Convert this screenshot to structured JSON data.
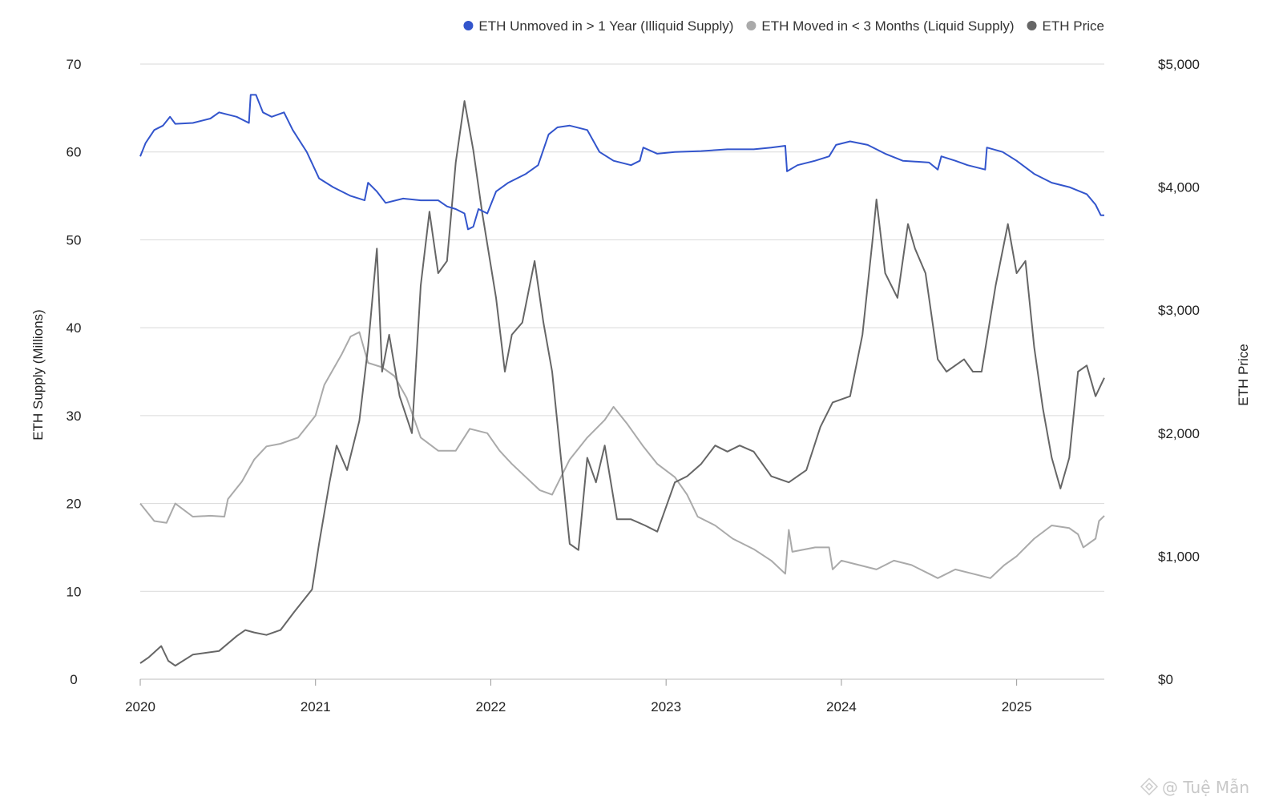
{
  "chart_data": {
    "type": "line",
    "title": "",
    "xlabel": "",
    "ylabel": "ETH Supply (Millions)",
    "y2label": "ETH Price",
    "x_ticks": [
      "2020",
      "2021",
      "2022",
      "2023",
      "2024",
      "2025"
    ],
    "y_ticks": [
      "0",
      "10",
      "20",
      "30",
      "40",
      "50",
      "60",
      "70"
    ],
    "y2_ticks": [
      "$0",
      "$1,000",
      "$2,000",
      "$3,000",
      "$4,000",
      "$5,000"
    ],
    "xlim": [
      2020.0,
      2025.5
    ],
    "ylim": [
      0,
      70
    ],
    "y2lim": [
      0,
      5000
    ],
    "grid": "horizontal",
    "legend_position": "top-right",
    "series": [
      {
        "name": "ETH Unmoved in > 1 Year (Illiquid Supply)",
        "axis": "left",
        "color": "#3355cc",
        "points": [
          [
            2020.0,
            59.5
          ],
          [
            2020.03,
            61.0
          ],
          [
            2020.08,
            62.5
          ],
          [
            2020.13,
            63.0
          ],
          [
            2020.17,
            64.0
          ],
          [
            2020.2,
            63.2
          ],
          [
            2020.3,
            63.3
          ],
          [
            2020.4,
            63.8
          ],
          [
            2020.45,
            64.5
          ],
          [
            2020.55,
            64.0
          ],
          [
            2020.62,
            63.3
          ],
          [
            2020.63,
            66.5
          ],
          [
            2020.66,
            66.5
          ],
          [
            2020.7,
            64.5
          ],
          [
            2020.75,
            64.0
          ],
          [
            2020.82,
            64.5
          ],
          [
            2020.87,
            62.5
          ],
          [
            2020.95,
            60.0
          ],
          [
            2021.02,
            57.0
          ],
          [
            2021.1,
            56.0
          ],
          [
            2021.2,
            55.0
          ],
          [
            2021.28,
            54.5
          ],
          [
            2021.3,
            56.5
          ],
          [
            2021.35,
            55.5
          ],
          [
            2021.4,
            54.2
          ],
          [
            2021.5,
            54.7
          ],
          [
            2021.6,
            54.5
          ],
          [
            2021.7,
            54.5
          ],
          [
            2021.75,
            53.8
          ],
          [
            2021.8,
            53.5
          ],
          [
            2021.85,
            53.0
          ],
          [
            2021.87,
            51.2
          ],
          [
            2021.9,
            51.5
          ],
          [
            2021.93,
            53.5
          ],
          [
            2021.98,
            53.0
          ],
          [
            2022.03,
            55.5
          ],
          [
            2022.1,
            56.5
          ],
          [
            2022.2,
            57.5
          ],
          [
            2022.27,
            58.5
          ],
          [
            2022.33,
            62.0
          ],
          [
            2022.38,
            62.8
          ],
          [
            2022.45,
            63.0
          ],
          [
            2022.55,
            62.5
          ],
          [
            2022.62,
            60.0
          ],
          [
            2022.7,
            59.0
          ],
          [
            2022.8,
            58.5
          ],
          [
            2022.85,
            59.0
          ],
          [
            2022.87,
            60.5
          ],
          [
            2022.95,
            59.8
          ],
          [
            2023.05,
            60.0
          ],
          [
            2023.2,
            60.1
          ],
          [
            2023.35,
            60.3
          ],
          [
            2023.5,
            60.3
          ],
          [
            2023.6,
            60.5
          ],
          [
            2023.68,
            60.7
          ],
          [
            2023.69,
            57.8
          ],
          [
            2023.75,
            58.5
          ],
          [
            2023.85,
            59.0
          ],
          [
            2023.93,
            59.5
          ],
          [
            2023.97,
            60.8
          ],
          [
            2024.05,
            61.2
          ],
          [
            2024.15,
            60.8
          ],
          [
            2024.25,
            59.8
          ],
          [
            2024.35,
            59.0
          ],
          [
            2024.5,
            58.8
          ],
          [
            2024.55,
            58.0
          ],
          [
            2024.57,
            59.5
          ],
          [
            2024.65,
            59.0
          ],
          [
            2024.72,
            58.5
          ],
          [
            2024.82,
            58.0
          ],
          [
            2024.83,
            60.5
          ],
          [
            2024.92,
            60.0
          ],
          [
            2025.0,
            59.0
          ],
          [
            2025.1,
            57.5
          ],
          [
            2025.2,
            56.5
          ],
          [
            2025.3,
            56.0
          ],
          [
            2025.4,
            55.2
          ],
          [
            2025.45,
            54.0
          ],
          [
            2025.48,
            52.8
          ],
          [
            2025.5,
            52.8
          ]
        ]
      },
      {
        "name": "ETH Moved in < 3 Months (Liquid Supply)",
        "axis": "left",
        "color": "#aaaaaa",
        "points": [
          [
            2020.0,
            20.0
          ],
          [
            2020.08,
            18.0
          ],
          [
            2020.15,
            17.8
          ],
          [
            2020.2,
            20.0
          ],
          [
            2020.3,
            18.5
          ],
          [
            2020.4,
            18.6
          ],
          [
            2020.48,
            18.5
          ],
          [
            2020.5,
            20.5
          ],
          [
            2020.58,
            22.5
          ],
          [
            2020.65,
            25.0
          ],
          [
            2020.72,
            26.5
          ],
          [
            2020.8,
            26.8
          ],
          [
            2020.9,
            27.5
          ],
          [
            2021.0,
            30.0
          ],
          [
            2021.05,
            33.5
          ],
          [
            2021.15,
            37.0
          ],
          [
            2021.2,
            39.0
          ],
          [
            2021.25,
            39.5
          ],
          [
            2021.3,
            36.0
          ],
          [
            2021.38,
            35.5
          ],
          [
            2021.45,
            34.5
          ],
          [
            2021.52,
            32.0
          ],
          [
            2021.6,
            27.5
          ],
          [
            2021.7,
            26.0
          ],
          [
            2021.8,
            26.0
          ],
          [
            2021.88,
            28.5
          ],
          [
            2021.98,
            28.0
          ],
          [
            2022.05,
            26.0
          ],
          [
            2022.12,
            24.5
          ],
          [
            2022.2,
            23.0
          ],
          [
            2022.28,
            21.5
          ],
          [
            2022.35,
            21.0
          ],
          [
            2022.45,
            25.0
          ],
          [
            2022.55,
            27.5
          ],
          [
            2022.65,
            29.5
          ],
          [
            2022.7,
            31.0
          ],
          [
            2022.78,
            29.0
          ],
          [
            2022.87,
            26.5
          ],
          [
            2022.95,
            24.5
          ],
          [
            2023.05,
            23.0
          ],
          [
            2023.12,
            21.0
          ],
          [
            2023.18,
            18.5
          ],
          [
            2023.28,
            17.5
          ],
          [
            2023.38,
            16.0
          ],
          [
            2023.5,
            14.8
          ],
          [
            2023.6,
            13.5
          ],
          [
            2023.68,
            12.0
          ],
          [
            2023.7,
            17.0
          ],
          [
            2023.72,
            14.5
          ],
          [
            2023.85,
            15.0
          ],
          [
            2023.93,
            15.0
          ],
          [
            2023.95,
            12.5
          ],
          [
            2024.0,
            13.5
          ],
          [
            2024.1,
            13.0
          ],
          [
            2024.2,
            12.5
          ],
          [
            2024.3,
            13.5
          ],
          [
            2024.4,
            13.0
          ],
          [
            2024.5,
            12.0
          ],
          [
            2024.55,
            11.5
          ],
          [
            2024.65,
            12.5
          ],
          [
            2024.75,
            12.0
          ],
          [
            2024.85,
            11.5
          ],
          [
            2024.93,
            13.0
          ],
          [
            2025.0,
            14.0
          ],
          [
            2025.1,
            16.0
          ],
          [
            2025.2,
            17.5
          ],
          [
            2025.3,
            17.2
          ],
          [
            2025.35,
            16.5
          ],
          [
            2025.38,
            15.0
          ],
          [
            2025.45,
            16.0
          ],
          [
            2025.47,
            18.0
          ],
          [
            2025.5,
            18.6
          ]
        ]
      },
      {
        "name": "ETH Price",
        "axis": "right",
        "color": "#666666",
        "points": [
          [
            2020.0,
            130
          ],
          [
            2020.05,
            180
          ],
          [
            2020.12,
            270
          ],
          [
            2020.16,
            150
          ],
          [
            2020.2,
            110
          ],
          [
            2020.3,
            200
          ],
          [
            2020.45,
            230
          ],
          [
            2020.55,
            350
          ],
          [
            2020.6,
            400
          ],
          [
            2020.65,
            380
          ],
          [
            2020.72,
            360
          ],
          [
            2020.8,
            400
          ],
          [
            2020.88,
            550
          ],
          [
            2020.98,
            730
          ],
          [
            2021.02,
            1100
          ],
          [
            2021.08,
            1600
          ],
          [
            2021.12,
            1900
          ],
          [
            2021.18,
            1700
          ],
          [
            2021.25,
            2100
          ],
          [
            2021.3,
            2700
          ],
          [
            2021.35,
            3500
          ],
          [
            2021.38,
            2500
          ],
          [
            2021.42,
            2800
          ],
          [
            2021.48,
            2300
          ],
          [
            2021.55,
            2000
          ],
          [
            2021.6,
            3200
          ],
          [
            2021.65,
            3800
          ],
          [
            2021.7,
            3300
          ],
          [
            2021.75,
            3400
          ],
          [
            2021.8,
            4200
          ],
          [
            2021.85,
            4700
          ],
          [
            2021.9,
            4300
          ],
          [
            2021.95,
            3800
          ],
          [
            2022.03,
            3100
          ],
          [
            2022.08,
            2500
          ],
          [
            2022.12,
            2800
          ],
          [
            2022.18,
            2900
          ],
          [
            2022.25,
            3400
          ],
          [
            2022.3,
            2900
          ],
          [
            2022.35,
            2500
          ],
          [
            2022.4,
            1800
          ],
          [
            2022.45,
            1100
          ],
          [
            2022.5,
            1050
          ],
          [
            2022.55,
            1800
          ],
          [
            2022.6,
            1600
          ],
          [
            2022.65,
            1900
          ],
          [
            2022.72,
            1300
          ],
          [
            2022.8,
            1300
          ],
          [
            2022.88,
            1250
          ],
          [
            2022.95,
            1200
          ],
          [
            2023.05,
            1600
          ],
          [
            2023.12,
            1650
          ],
          [
            2023.2,
            1750
          ],
          [
            2023.28,
            1900
          ],
          [
            2023.35,
            1850
          ],
          [
            2023.42,
            1900
          ],
          [
            2023.5,
            1850
          ],
          [
            2023.6,
            1650
          ],
          [
            2023.7,
            1600
          ],
          [
            2023.8,
            1700
          ],
          [
            2023.88,
            2050
          ],
          [
            2023.95,
            2250
          ],
          [
            2024.05,
            2300
          ],
          [
            2024.12,
            2800
          ],
          [
            2024.18,
            3600
          ],
          [
            2024.2,
            3900
          ],
          [
            2024.25,
            3300
          ],
          [
            2024.32,
            3100
          ],
          [
            2024.38,
            3700
          ],
          [
            2024.42,
            3500
          ],
          [
            2024.48,
            3300
          ],
          [
            2024.55,
            2600
          ],
          [
            2024.6,
            2500
          ],
          [
            2024.7,
            2600
          ],
          [
            2024.75,
            2500
          ],
          [
            2024.8,
            2500
          ],
          [
            2024.88,
            3200
          ],
          [
            2024.95,
            3700
          ],
          [
            2025.0,
            3300
          ],
          [
            2025.05,
            3400
          ],
          [
            2025.1,
            2700
          ],
          [
            2025.15,
            2200
          ],
          [
            2025.2,
            1800
          ],
          [
            2025.25,
            1550
          ],
          [
            2025.3,
            1800
          ],
          [
            2025.35,
            2500
          ],
          [
            2025.4,
            2550
          ],
          [
            2025.45,
            2300
          ],
          [
            2025.5,
            2450
          ]
        ]
      }
    ]
  },
  "watermark": "@ Tuệ Mẫn"
}
